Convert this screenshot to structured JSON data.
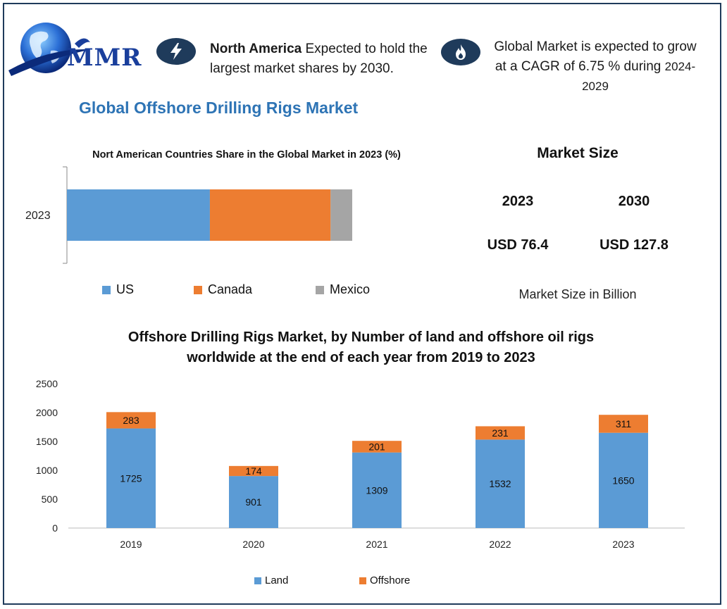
{
  "header": {
    "logo_text": "MMR",
    "info1_bold": "North America",
    "info1_rest": " Expected to hold the largest market shares by 2030.",
    "info2_main": "Global Market is expected to grow at a CAGR of 6.75 % during",
    "info2_years": "2024-2029",
    "icon1": "lightning-icon",
    "icon2": "flame-icon"
  },
  "main_title": "Global Offshore Drilling Rigs Market",
  "market_size": {
    "title": "Market Size",
    "years": [
      "2023",
      "2030"
    ],
    "values": [
      "USD 76.4",
      "USD 127.8"
    ],
    "unit_note": "Market Size in Billion"
  },
  "colors": {
    "blue": "#5b9bd5",
    "orange": "#ed7d31",
    "gray": "#a5a5a5",
    "title_blue": "#2e74b5",
    "navy": "#1f3b5b"
  },
  "chart_data": [
    {
      "type": "bar",
      "orientation": "horizontal",
      "stacked": true,
      "title": "Nort American Countries Share in the Global Market in 2023 (%)",
      "categories": [
        "2023"
      ],
      "series": [
        {
          "name": "US",
          "values": [
            45
          ]
        },
        {
          "name": "Canada",
          "values": [
            38
          ]
        },
        {
          "name": "Mexico",
          "values": [
            17
          ]
        }
      ],
      "legend": "bottom"
    },
    {
      "type": "bar",
      "stacked": true,
      "title": "Offshore Drilling Rigs Market, by Number of land and offshore oil rigs worldwide at the end of each year from 2019 to 2023",
      "categories": [
        "2019",
        "2020",
        "2021",
        "2022",
        "2023"
      ],
      "series": [
        {
          "name": "Land",
          "values": [
            1725,
            901,
            1309,
            1532,
            1650
          ]
        },
        {
          "name": "Offshore",
          "values": [
            283,
            174,
            201,
            231,
            311
          ]
        }
      ],
      "ylim": [
        0,
        2500
      ],
      "yticks": [
        0,
        500,
        1000,
        1500,
        2000,
        2500
      ],
      "legend": "bottom"
    }
  ]
}
